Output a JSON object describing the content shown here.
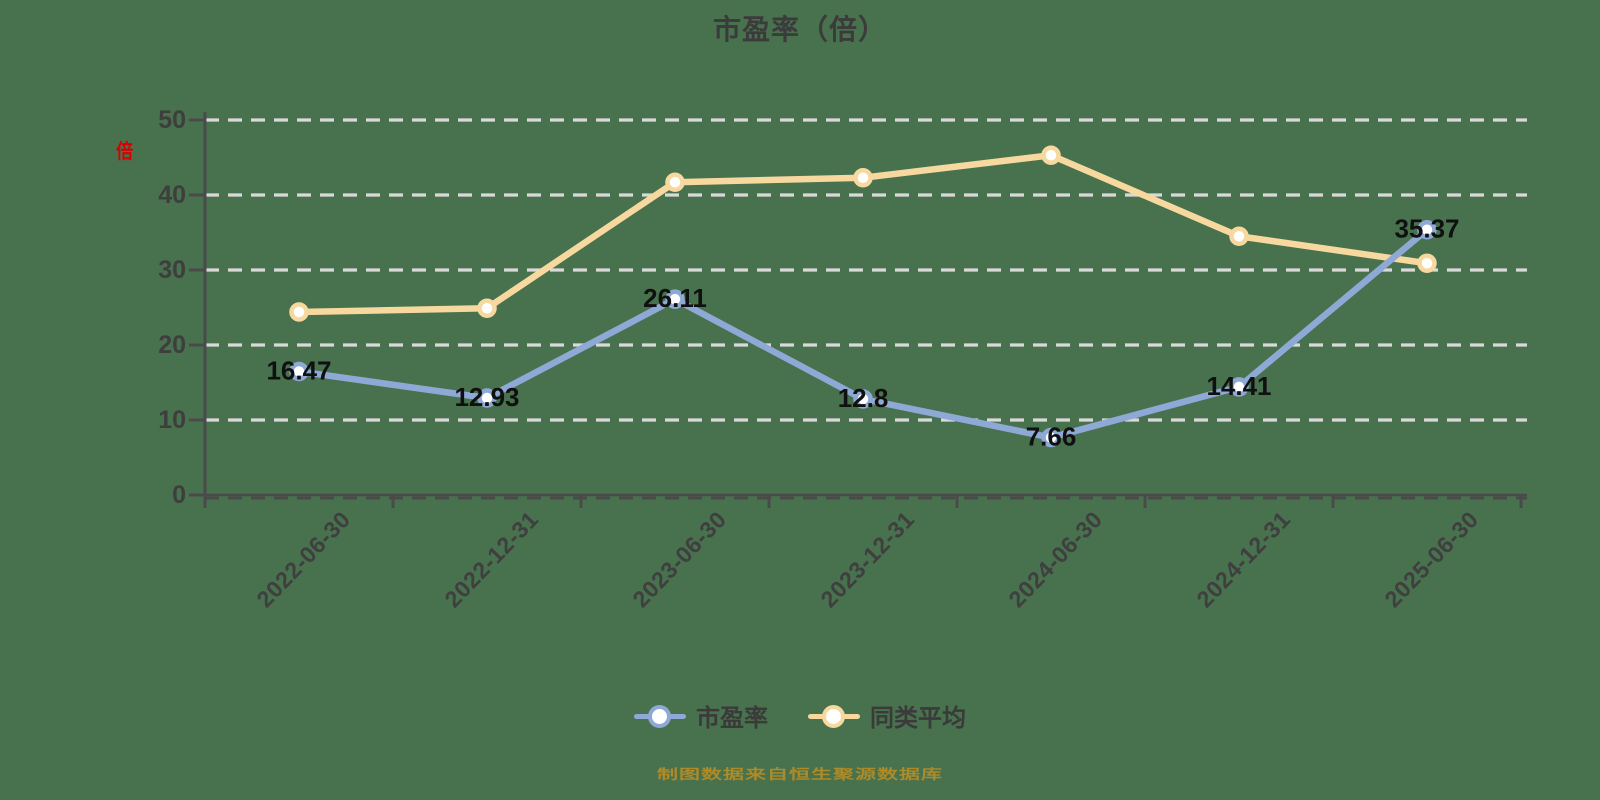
{
  "title": "市盈率（倍）",
  "y_axis": {
    "unit_label": "倍"
  },
  "source_note": "制图数据来自恒生聚源数据库",
  "colors": {
    "background": "#48714E",
    "pe_series": "#8FA9D6",
    "avg_series": "#F7D9A0",
    "grid": "#D9D9D9",
    "axis": "#4A4A4A",
    "point_label_text": "#101010",
    "title_text": "#3B3B3B",
    "tick_label_text": "#3E3E3E",
    "legend_text": "#3A3A3A",
    "source_text": "#AB8B2A",
    "unit_label_text": "#DA0000"
  },
  "chart_data": {
    "type": "line",
    "categories": [
      "2022-06-30",
      "2022-12-31",
      "2023-06-30",
      "2023-12-31",
      "2024-06-30",
      "2024-12-31",
      "2025-06-30"
    ],
    "series": [
      {
        "name": "市盈率",
        "color": "#8FA9D6",
        "values": [
          16.47,
          12.93,
          26.11,
          12.8,
          7.66,
          14.41,
          35.37
        ],
        "point_labels": [
          "16.47",
          "12.93",
          "26.11",
          "12.8",
          "7.66",
          "14.41",
          "35.37"
        ],
        "show_point_labels": true
      },
      {
        "name": "同类平均",
        "color": "#F7D9A0",
        "values": [
          24.4,
          24.9,
          41.7,
          42.3,
          45.3,
          34.5,
          30.9
        ],
        "show_point_labels": false
      }
    ],
    "title": "市盈率（倍）",
    "xlabel": "",
    "ylabel": "倍",
    "ylim": [
      0,
      50
    ],
    "yticks": [
      0,
      10,
      20,
      30,
      40,
      50
    ],
    "grid": "dashed-horizontal",
    "legend_position": "bottom",
    "marker": "hollow-circle"
  }
}
